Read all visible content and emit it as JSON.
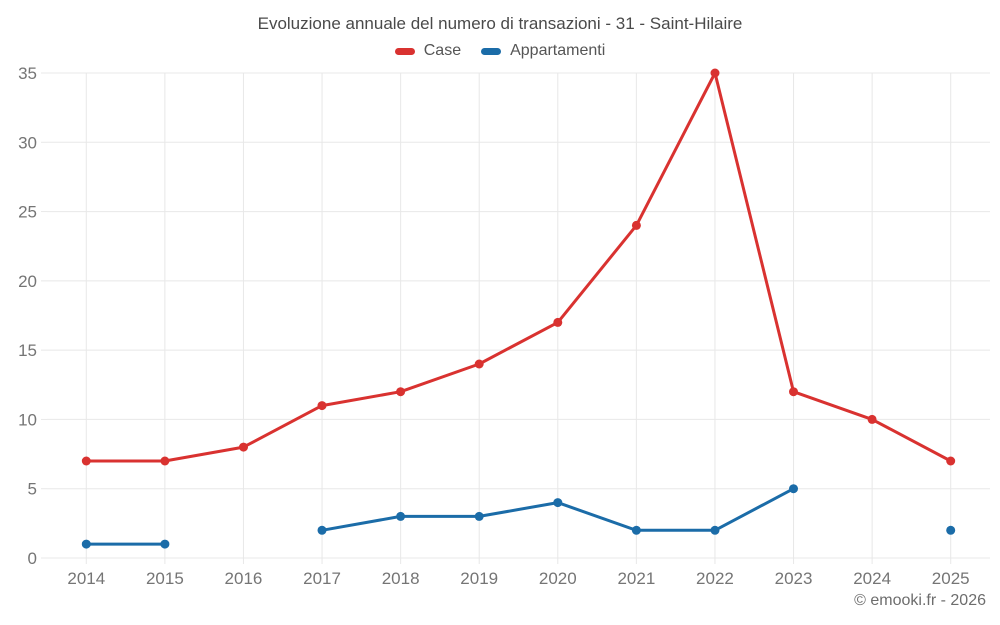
{
  "title": "Evoluzione annuale del numero di transazioni - 31 - Saint-Hilaire",
  "footer": "© emooki.fr - 2026",
  "chart_data": {
    "type": "line",
    "title": "Evoluzione annuale del numero di transazioni - 31 - Saint-Hilaire",
    "categories": [
      "2014",
      "2015",
      "2016",
      "2017",
      "2018",
      "2019",
      "2020",
      "2021",
      "2022",
      "2023",
      "2024",
      "2025"
    ],
    "series": [
      {
        "name": "Case",
        "color": "#d93230",
        "values": [
          7,
          7,
          8,
          11,
          12,
          14,
          17,
          24,
          35,
          12,
          10,
          7
        ]
      },
      {
        "name": "Appartamenti",
        "color": "#1b6ca8",
        "values": [
          1,
          1,
          null,
          2,
          3,
          3,
          4,
          2,
          2,
          5,
          null,
          2
        ]
      }
    ],
    "xlabel": "",
    "ylabel": "",
    "ylim": [
      0,
      35
    ],
    "yticks": [
      0,
      5,
      10,
      15,
      20,
      25,
      30,
      35
    ],
    "grid": true,
    "legend_position": "top"
  }
}
